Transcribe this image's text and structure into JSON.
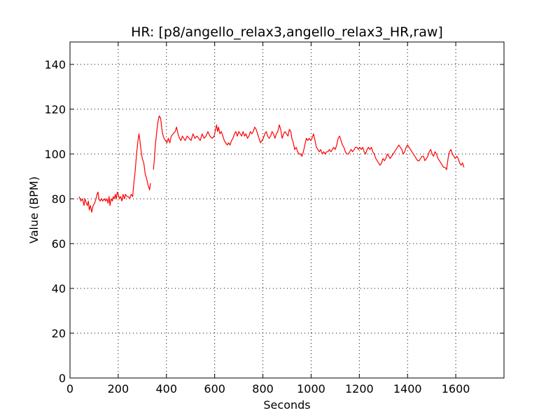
{
  "chart_data": {
    "type": "line",
    "title": "HR: [p8/angello_relax3,angello_relax3_HR,raw]",
    "xlabel": "Seconds",
    "ylabel": "Value (BPM)",
    "xlim": [
      0,
      1800
    ],
    "ylim": [
      0,
      150
    ],
    "xticks": [
      0,
      200,
      400,
      600,
      800,
      1000,
      1200,
      1400,
      1600
    ],
    "yticks": [
      0,
      20,
      40,
      60,
      80,
      100,
      120,
      140
    ],
    "grid": true,
    "colors": {
      "line": "#ff0000",
      "axes": "#000000",
      "background": "#ffffff"
    },
    "series": [
      {
        "segments": [
          [
            [
              38,
              81
            ],
            [
              45,
              79
            ],
            [
              52,
              80
            ],
            [
              58,
              77
            ],
            [
              62,
              80
            ],
            [
              68,
              78
            ],
            [
              72,
              77
            ],
            [
              76,
              79
            ],
            [
              80,
              75
            ],
            [
              85,
              77
            ],
            [
              90,
              74
            ],
            [
              96,
              77
            ],
            [
              102,
              78
            ],
            [
              108,
              80
            ],
            [
              112,
              82
            ],
            [
              116,
              83
            ],
            [
              120,
              80
            ],
            [
              125,
              79
            ],
            [
              130,
              80
            ],
            [
              136,
              79
            ],
            [
              142,
              80
            ],
            [
              148,
              79
            ],
            [
              153,
              80
            ],
            [
              158,
              78
            ],
            [
              162,
              81
            ],
            [
              166,
              77
            ],
            [
              170,
              80
            ],
            [
              176,
              79
            ],
            [
              180,
              81
            ],
            [
              184,
              80
            ],
            [
              188,
              82
            ],
            [
              192,
              80
            ],
            [
              196,
              83
            ],
            [
              200,
              82
            ],
            [
              205,
              80
            ],
            [
              210,
              81
            ],
            [
              215,
              79
            ],
            [
              220,
              82
            ],
            [
              226,
              80
            ],
            [
              230,
              82
            ],
            [
              236,
              81
            ],
            [
              242,
              81
            ],
            [
              248,
              80
            ],
            [
              254,
              82
            ],
            [
              260,
              81
            ],
            [
              264,
              86
            ],
            [
              270,
              92
            ],
            [
              276,
              100
            ],
            [
              282,
              106
            ],
            [
              286,
              109
            ],
            [
              290,
              106
            ],
            [
              294,
              102
            ],
            [
              300,
              98
            ],
            [
              306,
              96
            ],
            [
              312,
              91
            ],
            [
              318,
              89
            ],
            [
              324,
              86
            ],
            [
              330,
              84
            ],
            [
              334,
              87
            ]
          ],
          [
            [
              346,
              93
            ],
            [
              350,
              98
            ],
            [
              354,
              104
            ],
            [
              360,
              110
            ],
            [
              364,
              114
            ],
            [
              370,
              117
            ],
            [
              376,
              116
            ],
            [
              380,
              112
            ],
            [
              384,
              109
            ],
            [
              390,
              107
            ],
            [
              396,
              106
            ],
            [
              402,
              105
            ],
            [
              408,
              107
            ],
            [
              414,
              105
            ],
            [
              420,
              108
            ],
            [
              428,
              109
            ],
            [
              436,
              110
            ],
            [
              442,
              112
            ],
            [
              448,
              109
            ],
            [
              454,
              107
            ],
            [
              460,
              106
            ],
            [
              466,
              108
            ],
            [
              472,
              107
            ],
            [
              478,
              106
            ],
            [
              486,
              108
            ],
            [
              494,
              107
            ],
            [
              502,
              106
            ],
            [
              510,
              109
            ],
            [
              518,
              107
            ],
            [
              526,
              108
            ],
            [
              534,
              107
            ],
            [
              540,
              106
            ],
            [
              548,
              109
            ],
            [
              556,
              107
            ],
            [
              564,
              108
            ],
            [
              572,
              110
            ],
            [
              580,
              108
            ],
            [
              590,
              107
            ],
            [
              598,
              108
            ],
            [
              604,
              111
            ],
            [
              608,
              113
            ],
            [
              612,
              110
            ],
            [
              616,
              112
            ],
            [
              622,
              109
            ],
            [
              628,
              110
            ],
            [
              634,
              108
            ],
            [
              640,
              106
            ],
            [
              646,
              105
            ],
            [
              652,
              104
            ],
            [
              658,
              105
            ],
            [
              664,
              104
            ],
            [
              670,
              106
            ],
            [
              676,
              107
            ],
            [
              682,
              109
            ],
            [
              688,
              110
            ],
            [
              694,
              108
            ],
            [
              700,
              110
            ],
            [
              706,
              109
            ],
            [
              712,
              108
            ],
            [
              718,
              110
            ],
            [
              724,
              108
            ],
            [
              730,
              109
            ],
            [
              736,
              107
            ],
            [
              742,
              108
            ],
            [
              748,
              110
            ],
            [
              754,
              109
            ],
            [
              760,
              110
            ],
            [
              766,
              112
            ],
            [
              772,
              111
            ],
            [
              778,
              109
            ],
            [
              784,
              107
            ],
            [
              790,
              105
            ],
            [
              796,
              106
            ],
            [
              802,
              107
            ],
            [
              808,
              109
            ],
            [
              814,
              110
            ],
            [
              820,
              108
            ],
            [
              826,
              107
            ],
            [
              832,
              108
            ],
            [
              838,
              110
            ],
            [
              844,
              109
            ],
            [
              850,
              107
            ],
            [
              856,
              109
            ],
            [
              862,
              110
            ],
            [
              868,
              113
            ],
            [
              874,
              111
            ],
            [
              880,
              107
            ],
            [
              886,
              109
            ],
            [
              892,
              110
            ],
            [
              898,
              109
            ],
            [
              904,
              108
            ],
            [
              910,
              111
            ],
            [
              916,
              110
            ],
            [
              920,
              107
            ],
            [
              926,
              105
            ],
            [
              932,
              102
            ],
            [
              938,
              103
            ],
            [
              944,
              101
            ],
            [
              950,
              100
            ],
            [
              956,
              100
            ],
            [
              962,
              99
            ],
            [
              968,
              101
            ],
            [
              974,
              104
            ],
            [
              980,
              107
            ],
            [
              986,
              106
            ],
            [
              992,
              107
            ],
            [
              998,
              106
            ],
            [
              1004,
              107
            ],
            [
              1010,
              109
            ],
            [
              1016,
              106
            ],
            [
              1022,
              103
            ],
            [
              1028,
              102
            ],
            [
              1034,
              101
            ],
            [
              1040,
              102
            ],
            [
              1046,
              100
            ],
            [
              1052,
              101
            ],
            [
              1058,
              100
            ],
            [
              1064,
              101
            ],
            [
              1070,
              101
            ],
            [
              1076,
              102
            ],
            [
              1082,
              101
            ],
            [
              1088,
              102
            ],
            [
              1094,
              103
            ],
            [
              1100,
              102
            ],
            [
              1106,
              104
            ],
            [
              1112,
              107
            ],
            [
              1118,
              108
            ],
            [
              1124,
              106
            ],
            [
              1130,
              104
            ],
            [
              1136,
              103
            ],
            [
              1142,
              101
            ],
            [
              1148,
              100
            ],
            [
              1154,
              100
            ],
            [
              1160,
              101
            ],
            [
              1166,
              102
            ],
            [
              1172,
              101
            ],
            [
              1178,
              102
            ],
            [
              1184,
              103
            ],
            [
              1190,
              103
            ],
            [
              1196,
              102
            ],
            [
              1202,
              103
            ],
            [
              1208,
              102
            ],
            [
              1214,
              103
            ],
            [
              1220,
              101
            ],
            [
              1226,
              100
            ],
            [
              1232,
              102
            ],
            [
              1238,
              103
            ],
            [
              1244,
              102
            ],
            [
              1250,
              103
            ],
            [
              1256,
              101
            ],
            [
              1262,
              100
            ],
            [
              1268,
              98
            ],
            [
              1274,
              97
            ],
            [
              1280,
              96
            ],
            [
              1286,
              95
            ],
            [
              1292,
              96
            ],
            [
              1298,
              98
            ],
            [
              1304,
              97
            ],
            [
              1310,
              98
            ],
            [
              1316,
              100
            ],
            [
              1322,
              99
            ],
            [
              1328,
              98
            ],
            [
              1334,
              99
            ],
            [
              1340,
              100
            ],
            [
              1346,
              101
            ],
            [
              1352,
              102
            ],
            [
              1358,
              103
            ],
            [
              1364,
              104
            ],
            [
              1370,
              103
            ],
            [
              1376,
              102
            ],
            [
              1382,
              100
            ],
            [
              1388,
              101
            ],
            [
              1394,
              103
            ],
            [
              1400,
              104
            ],
            [
              1406,
              103
            ],
            [
              1412,
              102
            ],
            [
              1418,
              101
            ],
            [
              1424,
              100
            ],
            [
              1430,
              99
            ],
            [
              1436,
              98
            ],
            [
              1442,
              97
            ],
            [
              1448,
              97
            ],
            [
              1454,
              98
            ],
            [
              1460,
              99
            ],
            [
              1466,
              99
            ],
            [
              1472,
              97
            ],
            [
              1478,
              98
            ],
            [
              1484,
              99
            ],
            [
              1490,
              101
            ],
            [
              1496,
              102
            ],
            [
              1502,
              100
            ],
            [
              1508,
              99
            ],
            [
              1514,
              101
            ],
            [
              1520,
              100
            ],
            [
              1526,
              98
            ],
            [
              1532,
              97
            ],
            [
              1538,
              96
            ],
            [
              1544,
              95
            ],
            [
              1550,
              94
            ],
            [
              1556,
              94
            ],
            [
              1562,
              93
            ],
            [
              1568,
              98
            ],
            [
              1574,
              101
            ],
            [
              1580,
              102
            ],
            [
              1586,
              100
            ],
            [
              1592,
              99
            ],
            [
              1598,
              98
            ],
            [
              1604,
              99
            ],
            [
              1610,
              98
            ],
            [
              1616,
              96
            ],
            [
              1622,
              95
            ],
            [
              1628,
              96
            ],
            [
              1634,
              94
            ]
          ]
        ]
      }
    ]
  }
}
